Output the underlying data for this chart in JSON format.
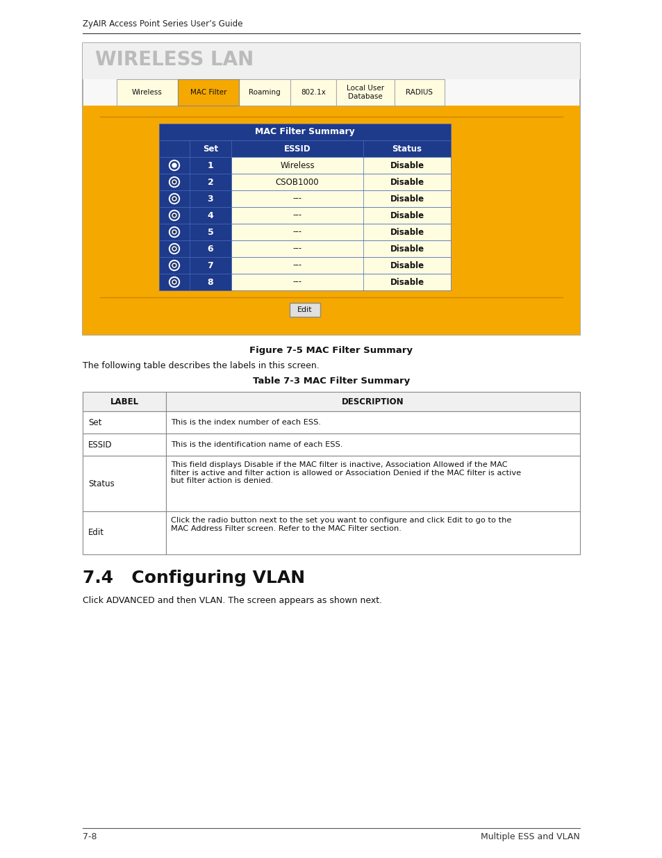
{
  "page_title": "ZyAIR Access Point Series User’s Guide",
  "footer_left": "7-8",
  "footer_right": "Multiple ESS and VLAN",
  "wireless_lan_title": "WIRELESS LAN",
  "tabs": [
    "Wireless",
    "MAC Filter",
    "Roaming",
    "802.1x",
    "Local User\nDatabase",
    "RADIUS"
  ],
  "active_tab": 1,
  "mac_table_title": "MAC Filter Summary",
  "mac_table_headers": [
    "",
    "Set",
    "ESSID",
    "Status"
  ],
  "mac_table_rows": [
    [
      "1",
      "Wireless",
      "Disable"
    ],
    [
      "2",
      "CSOB1000",
      "Disable"
    ],
    [
      "3",
      "---",
      "Disable"
    ],
    [
      "4",
      "---",
      "Disable"
    ],
    [
      "5",
      "---",
      "Disable"
    ],
    [
      "6",
      "---",
      "Disable"
    ],
    [
      "7",
      "---",
      "Disable"
    ],
    [
      "8",
      "---",
      "Disable"
    ]
  ],
  "fig_caption": "Figure 7-5 MAC Filter Summary",
  "fig_desc": "The following table describes the labels in this screen.",
  "table_caption": "Table 7-3 MAC Filter Summary",
  "desc_table_headers": [
    "LABEL",
    "DESCRIPTION"
  ],
  "desc_table_rows": [
    [
      "Set",
      "This is the index number of each ESS."
    ],
    [
      "ESSID",
      "This is the identification name of each ESS."
    ],
    [
      "Status",
      "This field displays Disable if the MAC filter is inactive, Association Allowed if the MAC filter is active and filter action is allowed or Association Denied if the MAC filter is active but filter action is denied."
    ],
    [
      "Edit",
      "Click the radio button next to the set you want to configure and click Edit to go to the MAC Address Filter screen. Refer to the MAC Filter section."
    ]
  ],
  "section_title": "7.4   Configuring VLAN",
  "section_text": "Click ADVANCED and then VLAN. The screen appears as shown next.",
  "bg_yellow": "#F5A800",
  "bg_blue": "#1E3A8A",
  "bg_white": "#ffffff",
  "bg_cream": "#FFFDE0",
  "tab_active_bg": "#F5A800",
  "tab_inactive_bg": "#FFFCE0",
  "text_white": "#ffffff",
  "text_dark": "#111111",
  "text_gray_title": "#aaaaaa"
}
